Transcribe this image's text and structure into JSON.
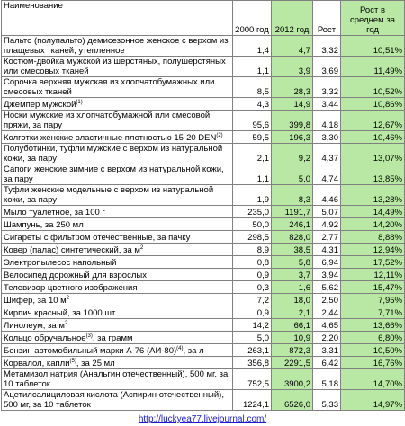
{
  "table": {
    "header": [
      "Наименование",
      "2000 год",
      "2012 год",
      "Рост",
      "Рост в среднем за год"
    ],
    "rows": [
      {
        "name": "Пальто (полупальто) демисезонное женское с верхом из плащевых тканей, утепленное",
        "cells": [
          "1,4",
          "4,7",
          "3,32",
          "10,51%"
        ]
      },
      {
        "name": "Костюм-двойка мужской из шерстяных, полушерстяных или смесовых тканей",
        "cells": [
          "1,1",
          "3,9",
          "3,69",
          "11,49%"
        ]
      },
      {
        "name": "Сорочка верхняя мужская из хлопчатобумажных или смесовых тканей",
        "cells": [
          "8,5",
          "28,3",
          "3,32",
          "10,52%"
        ]
      },
      {
        "name": "Джемпер мужской",
        "sup": "(1)",
        "cells": [
          "4,3",
          "14,9",
          "3,44",
          "10,86%"
        ]
      },
      {
        "name": "Носки мужские из хлопчатобумажной или смесовой пряжи, за пару",
        "cells": [
          "95,6",
          "399,8",
          "4,18",
          "12,67%"
        ]
      },
      {
        "name": "Колготки женские эластичные плотностью 15-20 DEN",
        "sup": "(2)",
        "cells": [
          "59,5",
          "196,3",
          "3,30",
          "10,46%"
        ]
      },
      {
        "name": "Полуботинки, туфли мужские с верхом из натуральной кожи, за пару",
        "cells": [
          "2,1",
          "9,2",
          "4,37",
          "13,07%"
        ]
      },
      {
        "name": "Сапоги женские зимние с верхом из натуральной кожи, за пару",
        "cells": [
          "1,1",
          "5,0",
          "4,74",
          "13,85%"
        ]
      },
      {
        "name": "Туфли женские модельные с верхом из натуральной кожи, за пару",
        "cells": [
          "1,9",
          "8,3",
          "4,46",
          "13,28%"
        ]
      },
      {
        "name": "Мыло туалетное, за 100 г",
        "cells": [
          "235,0",
          "1191,7",
          "5,07",
          "14,49%"
        ]
      },
      {
        "name": "Шампунь, за 250 мл",
        "cells": [
          "50,0",
          "246,1",
          "4,92",
          "14,20%"
        ]
      },
      {
        "name": "Сигареты с фильтром отечественные, за пачку",
        "cells": [
          "298,5",
          "828,0",
          "2,77",
          "8,88%"
        ]
      },
      {
        "name": "Ковер (палас) синтетический, за м",
        "sup": "2",
        "cells": [
          "8,9",
          "38,5",
          "4,31",
          "12,94%"
        ]
      },
      {
        "name": "Электропылесос напольный",
        "cells": [
          "0,8",
          "5,8",
          "6,94",
          "17,52%"
        ]
      },
      {
        "name": "Велосипед дорожный для взрослых",
        "cells": [
          "0,9",
          "3,7",
          "3,94",
          "12,11%"
        ]
      },
      {
        "name": "Телевизор цветного изображения",
        "cells": [
          "0,3",
          "1,6",
          "5,62",
          "15,47%"
        ]
      },
      {
        "name": "Шифер, за 10 м",
        "sup": "2",
        "cells": [
          "7,2",
          "18,0",
          "2,50",
          "7,95%"
        ]
      },
      {
        "name": "Кирпич красный, за 1000 шт.",
        "cells": [
          "0,9",
          "2,1",
          "2,44",
          "7,71%"
        ]
      },
      {
        "name": "Линолеум, за м",
        "sup": "2",
        "cells": [
          "14,2",
          "66,1",
          "4,65",
          "13,66%"
        ]
      },
      {
        "name": "Кольцо обручальное",
        "sup": "(3)",
        "after": ", за грамм",
        "cells": [
          "5,0",
          "10,9",
          "2,20",
          "6,80%"
        ]
      },
      {
        "name": "Бензин автомобильный марки А-76 (АИ-80)",
        "sup": "(4)",
        "after": ", за л",
        "cells": [
          "263,1",
          "872,3",
          "3,31",
          "10,50%"
        ]
      },
      {
        "name": "Корвалол, капли",
        "sup": "(5)",
        "after": ", за 25 мл",
        "cells": [
          "356,8",
          "2291,5",
          "6,42",
          "16,76%"
        ]
      },
      {
        "name": "Метамизол натрия (Анальгин отечественный), 500 мг, за 10 таблеток",
        "cells": [
          "752,5",
          "3900,2",
          "5,18",
          "14,70%"
        ]
      },
      {
        "name": "Ацетилсалициловая кислота (Аспирин отечественный), 500 мг, за 10 таблеток",
        "cells": [
          "1224,1",
          "6526,0",
          "5,33",
          "14,97%"
        ]
      }
    ]
  },
  "footer": {
    "link": "http://luckyea77.livejournal.com/"
  }
}
